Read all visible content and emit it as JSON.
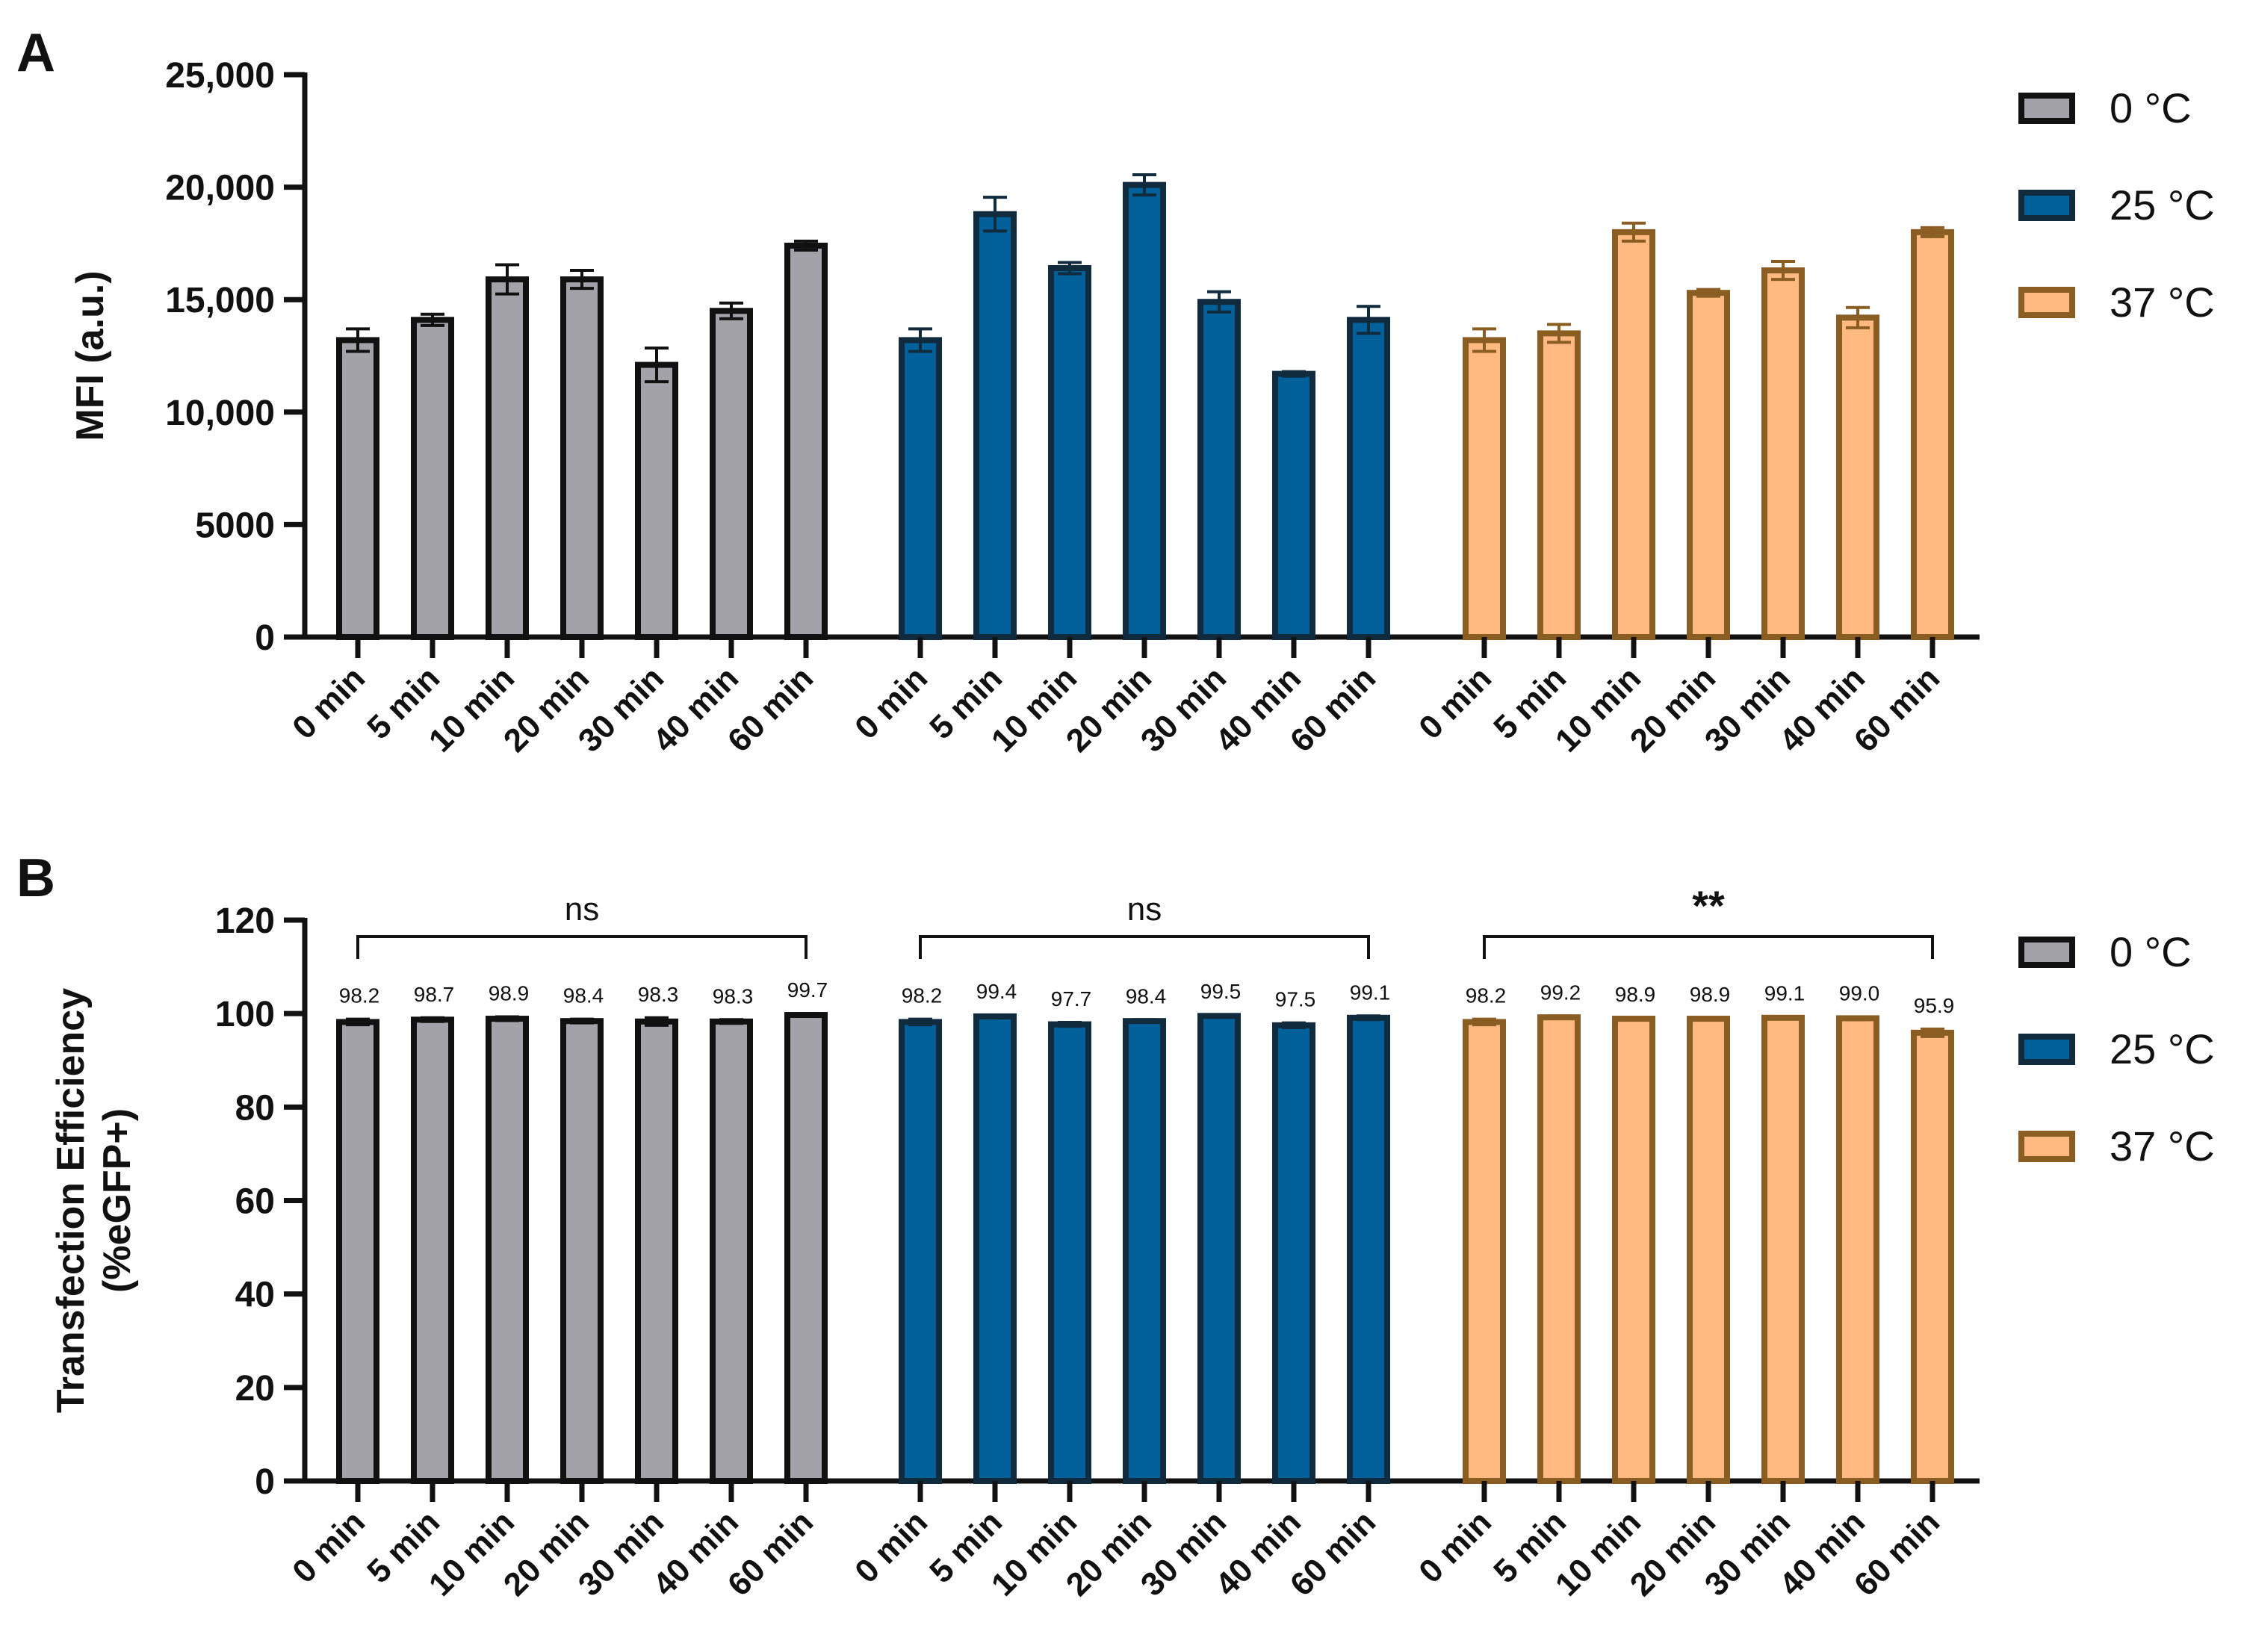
{
  "chart_data": [
    {
      "panel": "A",
      "type": "bar",
      "ylabel": "MFI (a.u.)",
      "xlabel": "",
      "ylim": [
        0,
        25000
      ],
      "yticks": [
        0,
        5000,
        10000,
        15000,
        20000,
        25000
      ],
      "ytick_labels": [
        "0",
        "5000",
        "10,000",
        "15,000",
        "20,000",
        "25,000"
      ],
      "categories": [
        "0 min",
        "5 min",
        "10 min",
        "20 min",
        "30 min",
        "40 min",
        "60 min"
      ],
      "series": [
        {
          "name": "0 °C",
          "color": "#a3a2a8",
          "edge": "#111111",
          "values": [
            13200,
            14100,
            15900,
            15900,
            12100,
            14500,
            17400
          ],
          "errors": [
            500,
            250,
            650,
            400,
            750,
            350,
            200
          ]
        },
        {
          "name": "25 °C",
          "color": "#02609a",
          "edge": "#0f2b3d",
          "values": [
            13200,
            18800,
            16400,
            20100,
            14900,
            11700,
            14100
          ],
          "errors": [
            500,
            750,
            250,
            450,
            450,
            100,
            600
          ]
        },
        {
          "name": "37 °C",
          "color": "#fdb97f",
          "edge": "#8a5d22",
          "values": [
            13200,
            13500,
            18000,
            15300,
            16300,
            14200,
            18000
          ],
          "errors": [
            500,
            400,
            400,
            150,
            400,
            450,
            200
          ]
        }
      ],
      "legend": {
        "position": "top-right",
        "entries": [
          "0 °C",
          "25 °C",
          "37 °C"
        ]
      }
    },
    {
      "panel": "B",
      "type": "bar",
      "ylabel": "Transfection Efficiency (%eGFP+)",
      "ylabel_lines": [
        "Transfection Efficiency",
        "(%eGFP+)"
      ],
      "xlabel": "",
      "ylim": [
        0,
        120
      ],
      "yticks": [
        0,
        20,
        40,
        60,
        80,
        100,
        120
      ],
      "ytick_labels": [
        "0",
        "20",
        "40",
        "60",
        "80",
        "100",
        "120"
      ],
      "categories": [
        "0 min",
        "5 min",
        "10 min",
        "20 min",
        "30 min",
        "40 min",
        "60 min"
      ],
      "series": [
        {
          "name": "0 °C",
          "color": "#a3a2a8",
          "edge": "#111111",
          "values": [
            98.2,
            98.7,
            98.9,
            98.4,
            98.3,
            98.3,
            99.7
          ],
          "labels": [
            "98.2",
            "98.7",
            "98.9",
            "98.4",
            "98.3",
            "98.3",
            "99.7"
          ],
          "errors": [
            0.6,
            0.4,
            0.4,
            0.4,
            0.8,
            0.4,
            0.3
          ],
          "significance": "ns"
        },
        {
          "name": "25 °C",
          "color": "#02609a",
          "edge": "#0f2b3d",
          "values": [
            98.2,
            99.4,
            97.7,
            98.4,
            99.5,
            97.5,
            99.1
          ],
          "labels": [
            "98.2",
            "99.4",
            "97.7",
            "98.4",
            "99.5",
            "97.5",
            "99.1"
          ],
          "errors": [
            0.6,
            0.3,
            0.4,
            0.3,
            0.2,
            0.5,
            0.4
          ],
          "significance": "ns"
        },
        {
          "name": "37 °C",
          "color": "#fdb97f",
          "edge": "#8a5d22",
          "values": [
            98.2,
            99.2,
            98.9,
            98.9,
            99.1,
            99.0,
            95.9
          ],
          "labels": [
            "98.2",
            "99.2",
            "98.9",
            "98.9",
            "99.1",
            "99.0",
            "95.9"
          ],
          "errors": [
            0.6,
            0.3,
            0.2,
            0.2,
            0.2,
            0.3,
            0.8
          ],
          "significance": "**"
        }
      ],
      "legend": {
        "position": "right",
        "entries": [
          "0 °C",
          "25 °C",
          "37 °C"
        ]
      }
    }
  ]
}
